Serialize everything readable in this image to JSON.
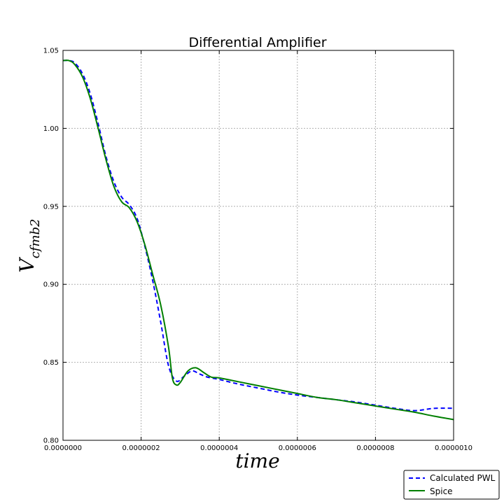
{
  "chart_data": {
    "type": "line",
    "title": "Differential Amplifier",
    "xlabel": "time",
    "ylabel_main": "V",
    "ylabel_sub": "cfmb2",
    "xlim": [
      0,
      1e-06
    ],
    "ylim": [
      0.8,
      1.05
    ],
    "grid": true,
    "legend_position": "bottom-right, outside plot",
    "x_ticks": [
      {
        "value": 0,
        "label": "0.0000000"
      },
      {
        "value": 2e-07,
        "label": "0.0000002"
      },
      {
        "value": 4e-07,
        "label": "0.0000004"
      },
      {
        "value": 6e-07,
        "label": "0.0000006"
      },
      {
        "value": 8e-07,
        "label": "0.0000008"
      },
      {
        "value": 1e-06,
        "label": "0.0000010"
      }
    ],
    "y_ticks": [
      {
        "value": 0.8,
        "label": "0.80"
      },
      {
        "value": 0.85,
        "label": "0.85"
      },
      {
        "value": 0.9,
        "label": "0.90"
      },
      {
        "value": 0.95,
        "label": "0.95"
      },
      {
        "value": 1.0,
        "label": "1.00"
      },
      {
        "value": 1.05,
        "label": "1.05"
      }
    ],
    "series": [
      {
        "name": "Calculated PWL",
        "color": "#0000ff",
        "style": "dashed",
        "points": [
          [
            0,
            1.0435
          ],
          [
            1.5e-08,
            1.0435
          ],
          [
            3e-08,
            1.042
          ],
          [
            5e-08,
            1.035
          ],
          [
            7e-08,
            1.022
          ],
          [
            9e-08,
            1.003
          ],
          [
            1.1e-07,
            0.982
          ],
          [
            1.3e-07,
            0.966
          ],
          [
            1.5e-07,
            0.956
          ],
          [
            1.7e-07,
            0.951
          ],
          [
            1.9e-07,
            0.942
          ],
          [
            2.1e-07,
            0.924
          ],
          [
            2.3e-07,
            0.902
          ],
          [
            2.5e-07,
            0.876
          ],
          [
            2.7e-07,
            0.848
          ],
          [
            2.9e-07,
            0.838
          ],
          [
            3.1e-07,
            0.841
          ],
          [
            3.3e-07,
            0.8445
          ],
          [
            3.5e-07,
            0.8425
          ],
          [
            3.7e-07,
            0.8405
          ],
          [
            4e-07,
            0.839
          ],
          [
            4.5e-07,
            0.836
          ],
          [
            5e-07,
            0.8335
          ],
          [
            5.5e-07,
            0.831
          ],
          [
            6e-07,
            0.829
          ],
          [
            6.5e-07,
            0.8275
          ],
          [
            7e-07,
            0.826
          ],
          [
            7.5e-07,
            0.8245
          ],
          [
            8e-07,
            0.8225
          ],
          [
            8.5e-07,
            0.8205
          ],
          [
            9e-07,
            0.819
          ],
          [
            9.5e-07,
            0.8205
          ],
          [
            1e-06,
            0.8205
          ]
        ]
      },
      {
        "name": "Spice",
        "color": "#007f00",
        "style": "solid",
        "points": [
          [
            0,
            1.0435
          ],
          [
            1.5e-08,
            1.0435
          ],
          [
            3e-08,
            1.041
          ],
          [
            5e-08,
            1.033
          ],
          [
            7e-08,
            1.019
          ],
          [
            9e-08,
            1.0
          ],
          [
            1.1e-07,
            0.98
          ],
          [
            1.3e-07,
            0.963
          ],
          [
            1.5e-07,
            0.953
          ],
          [
            1.7e-07,
            0.949
          ],
          [
            1.9e-07,
            0.94
          ],
          [
            2.1e-07,
            0.925
          ],
          [
            2.3e-07,
            0.906
          ],
          [
            2.5e-07,
            0.887
          ],
          [
            2.7e-07,
            0.86
          ],
          [
            2.8e-07,
            0.84
          ],
          [
            2.9e-07,
            0.8355
          ],
          [
            3e-07,
            0.837
          ],
          [
            3.2e-07,
            0.8445
          ],
          [
            3.4e-07,
            0.8465
          ],
          [
            3.6e-07,
            0.8435
          ],
          [
            3.8e-07,
            0.8405
          ],
          [
            4e-07,
            0.84
          ],
          [
            4.5e-07,
            0.8375
          ],
          [
            5e-07,
            0.835
          ],
          [
            5.5e-07,
            0.8325
          ],
          [
            6e-07,
            0.83
          ],
          [
            6.5e-07,
            0.8275
          ],
          [
            7e-07,
            0.826
          ],
          [
            7.5e-07,
            0.824
          ],
          [
            8e-07,
            0.822
          ],
          [
            8.5e-07,
            0.82
          ],
          [
            9e-07,
            0.818
          ],
          [
            9.5e-07,
            0.8155
          ],
          [
            1e-06,
            0.8133
          ]
        ]
      }
    ]
  }
}
